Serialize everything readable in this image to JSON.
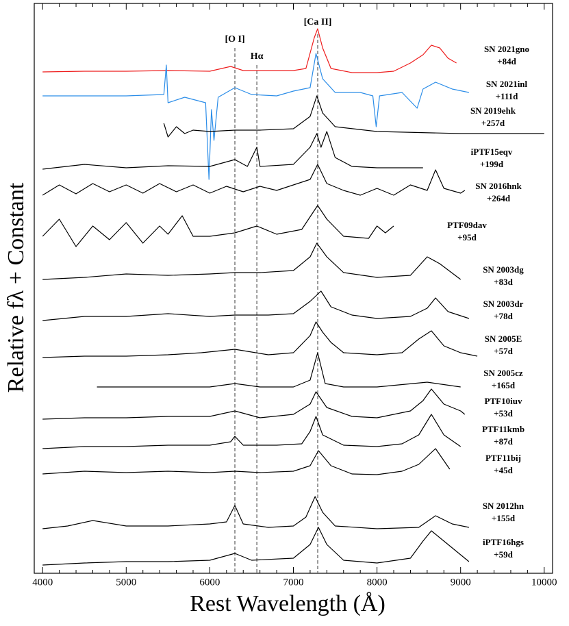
{
  "chart_data": {
    "type": "line",
    "xlabel": "Rest Wavelength (Å)",
    "ylabel": "Relative fλ + Constant",
    "xlim": [
      3900,
      10100
    ],
    "ylim": [
      0,
      83.2
    ],
    "xticks": [
      4000,
      5000,
      6000,
      7000,
      8000,
      9000,
      10000
    ],
    "lines": [
      {
        "label": "[O I]",
        "x": 6300
      },
      {
        "label": "Hα",
        "x": 6563
      },
      {
        "label": "[Ca II]",
        "x": 7291
      }
    ],
    "series": [
      {
        "name": "SN 2021gno",
        "phase": "+84d",
        "color": "#ee1c1c",
        "x": [
          4000,
          4500,
          5000,
          5500,
          6000,
          6250,
          6400,
          6700,
          7000,
          7150,
          7250,
          7290,
          7350,
          7450,
          7700,
          8000,
          8200,
          8400,
          8550,
          8650,
          8750,
          8850,
          8950
        ],
        "values": [
          73.2,
          73.3,
          73.3,
          73.4,
          73.3,
          74.0,
          73.4,
          73.4,
          73.4,
          73.7,
          78.2,
          79.5,
          76.7,
          73.7,
          73.1,
          73.1,
          73.3,
          74.5,
          75.7,
          77.1,
          76.7,
          75.2,
          74.5
        ]
      },
      {
        "name": "SN 2021inl",
        "phase": "+111d",
        "color": "#2b8de8",
        "x": [
          4000,
          4500,
          5000,
          5450,
          5480,
          5500,
          5700,
          5950,
          5990,
          6020,
          6050,
          6100,
          6300,
          6500,
          6800,
          7000,
          7200,
          7270,
          7350,
          7500,
          7800,
          7950,
          7990,
          8030,
          8300,
          8480,
          8550,
          8700,
          8900,
          9100
        ],
        "values": [
          69.7,
          69.7,
          69.7,
          69.9,
          74.2,
          68.7,
          69.5,
          68.7,
          57.5,
          67.7,
          63.2,
          69.5,
          70.9,
          69.9,
          69.7,
          70.4,
          70.9,
          75.9,
          72.2,
          70.2,
          70.2,
          69.7,
          65.2,
          69.7,
          70.2,
          67.9,
          70.7,
          71.7,
          70.7,
          70.2
        ]
      },
      {
        "name": "SN 2019ehk",
        "phase": "+257d",
        "color": "#000000",
        "x": [
          5450,
          5500,
          5600,
          5700,
          5800,
          6000,
          6300,
          6600,
          7000,
          7200,
          7280,
          7350,
          7500,
          8000,
          9000,
          10000
        ],
        "values": [
          65.7,
          63.7,
          65.2,
          64.2,
          64.7,
          64.5,
          64.7,
          64.7,
          64.9,
          66.7,
          69.7,
          67.2,
          65.2,
          64.5,
          64.2,
          64.2
        ]
      },
      {
        "name": "iPTF15eqv",
        "phase": "+199d",
        "color": "#000000",
        "x": [
          4000,
          4500,
          5000,
          5500,
          6000,
          6300,
          6450,
          6563,
          6600,
          7000,
          7200,
          7280,
          7330,
          7400,
          7500,
          7700,
          8000,
          8550
        ],
        "values": [
          59.0,
          59.7,
          59.2,
          59.5,
          59.4,
          60.4,
          59.4,
          62.2,
          59.4,
          59.7,
          62.2,
          64.2,
          62.2,
          64.5,
          60.7,
          59.4,
          59.2,
          59.2
        ]
      },
      {
        "name": "SN 2016hnk",
        "phase": "+264d",
        "color": "#000000",
        "x": [
          4000,
          4200,
          4400,
          4600,
          4800,
          5000,
          5200,
          5400,
          5600,
          5800,
          6000,
          6200,
          6400,
          6600,
          6800,
          7000,
          7200,
          7290,
          7400,
          7600,
          7800,
          8000,
          8200,
          8400,
          8600,
          8700,
          8800,
          9000,
          9050
        ],
        "values": [
          55.2,
          56.7,
          55.4,
          56.9,
          55.7,
          56.7,
          55.5,
          56.9,
          55.7,
          56.7,
          55.5,
          56.5,
          55.7,
          56.5,
          55.9,
          56.7,
          57.5,
          59.7,
          56.9,
          55.9,
          55.2,
          56.2,
          55.2,
          56.7,
          55.9,
          58.9,
          56.2,
          55.5,
          55.9
        ]
      },
      {
        "name": "PTF09dav",
        "phase": "+95d",
        "color": "#000000",
        "x": [
          4000,
          4200,
          4400,
          4600,
          4800,
          5000,
          5200,
          5400,
          5500,
          5670,
          5800,
          6000,
          6300,
          6563,
          6800,
          7100,
          7290,
          7400,
          7600,
          7900,
          8000,
          8100,
          8200
        ],
        "values": [
          49.2,
          51.7,
          47.7,
          50.7,
          48.7,
          51.2,
          48.2,
          50.7,
          49.5,
          52.2,
          49.2,
          49.2,
          49.7,
          50.7,
          49.5,
          50.2,
          53.7,
          51.7,
          49.2,
          48.9,
          50.7,
          49.7,
          50.7
        ]
      },
      {
        "name": "SN 2003dg",
        "phase": "+83d",
        "color": "#000000",
        "x": [
          4000,
          4500,
          5000,
          5500,
          6000,
          6300,
          6600,
          7000,
          7200,
          7280,
          7400,
          7600,
          8000,
          8400,
          8600,
          8750,
          9000
        ],
        "values": [
          42.9,
          43.2,
          43.7,
          43.5,
          43.7,
          43.9,
          43.9,
          44.2,
          46.2,
          48.2,
          46.2,
          43.9,
          43.2,
          43.5,
          46.2,
          45.2,
          42.9
        ]
      },
      {
        "name": "SN 2003dr",
        "phase": "+78d",
        "color": "#000000",
        "x": [
          4000,
          4500,
          5000,
          5500,
          6000,
          6300,
          6700,
          7000,
          7200,
          7330,
          7450,
          7700,
          8000,
          8400,
          8600,
          8700,
          8850,
          9100
        ],
        "values": [
          36.9,
          37.5,
          37.5,
          37.9,
          37.5,
          37.7,
          37.7,
          37.9,
          39.7,
          41.2,
          38.9,
          37.7,
          37.2,
          37.5,
          38.7,
          40.2,
          38.2,
          37.2
        ]
      },
      {
        "name": "SN 2005E",
        "phase": "+57d",
        "color": "#000000",
        "x": [
          4000,
          4500,
          5000,
          5500,
          5900,
          6300,
          6700,
          7000,
          7200,
          7270,
          7350,
          7450,
          7600,
          8000,
          8300,
          8500,
          8650,
          8800,
          9000,
          9200
        ],
        "values": [
          31.5,
          31.7,
          31.7,
          31.9,
          32.2,
          32.7,
          31.9,
          32.2,
          34.7,
          36.7,
          35.2,
          33.7,
          32.2,
          31.9,
          32.2,
          34.2,
          35.4,
          33.2,
          32.2,
          31.7
        ]
      },
      {
        "name": "SN 2005cz",
        "phase": "+165d",
        "color": "#000000",
        "x": [
          4650,
          5000,
          5500,
          6000,
          6300,
          6600,
          7000,
          7200,
          7290,
          7380,
          7600,
          8000,
          8600,
          9000
        ],
        "values": [
          27.2,
          27.2,
          27.2,
          27.2,
          27.7,
          27.2,
          27.2,
          28.2,
          32.2,
          27.7,
          27.2,
          27.2,
          27.9,
          27.2
        ]
      },
      {
        "name": "PTF10iuv",
        "phase": "+53d",
        "color": "#000000",
        "x": [
          4000,
          4500,
          5000,
          5500,
          6000,
          6300,
          6600,
          7000,
          7200,
          7270,
          7400,
          7700,
          8000,
          8400,
          8550,
          8650,
          8800,
          9000,
          9050
        ],
        "values": [
          22.5,
          22.7,
          22.7,
          22.9,
          22.9,
          23.7,
          22.7,
          23.2,
          24.7,
          26.5,
          24.2,
          22.9,
          22.7,
          23.7,
          25.2,
          26.9,
          24.7,
          23.7,
          23.2
        ]
      },
      {
        "name": "PTF11kmb",
        "phase": "+87d",
        "color": "#000000",
        "x": [
          4000,
          4500,
          5000,
          5500,
          6000,
          6250,
          6300,
          6400,
          6800,
          7100,
          7200,
          7270,
          7350,
          7600,
          8000,
          8300,
          8500,
          8650,
          8800,
          9000
        ],
        "values": [
          18.2,
          18.5,
          18.5,
          18.7,
          18.7,
          19.2,
          20.0,
          18.7,
          18.7,
          18.9,
          20.7,
          22.9,
          20.2,
          18.7,
          18.5,
          18.9,
          20.2,
          23.2,
          20.2,
          18.5
        ]
      },
      {
        "name": "PTF11bij",
        "phase": "+45d",
        "color": "#000000",
        "x": [
          4000,
          4500,
          5000,
          5500,
          6000,
          6300,
          6600,
          7000,
          7200,
          7300,
          7450,
          7700,
          8000,
          8300,
          8500,
          8700,
          8870
        ],
        "values": [
          14.5,
          14.9,
          14.7,
          14.9,
          14.7,
          14.9,
          14.7,
          14.9,
          15.7,
          17.9,
          15.7,
          14.5,
          14.4,
          14.9,
          15.9,
          18.2,
          15.2
        ]
      },
      {
        "name": "SN 2012hn",
        "phase": "+155d",
        "color": "#000000",
        "x": [
          4000,
          4300,
          4600,
          5000,
          5500,
          6000,
          6200,
          6300,
          6400,
          6700,
          7000,
          7150,
          7260,
          7350,
          7500,
          8000,
          8500,
          8700,
          8900,
          9100
        ],
        "values": [
          6.5,
          6.9,
          7.7,
          6.9,
          6.9,
          7.2,
          7.5,
          9.9,
          7.2,
          6.7,
          6.9,
          8.2,
          11.2,
          8.9,
          6.9,
          6.5,
          6.7,
          8.4,
          7.2,
          6.7
        ]
      },
      {
        "name": "iPTF16hgs",
        "phase": "+59d",
        "color": "#000000",
        "x": [
          4000,
          4500,
          5000,
          5500,
          6000,
          6300,
          6500,
          7000,
          7200,
          7300,
          7400,
          7600,
          8000,
          8400,
          8550,
          8650,
          8800,
          9000,
          9100
        ],
        "values": [
          1.2,
          1.5,
          1.7,
          1.7,
          1.9,
          2.9,
          1.9,
          2.2,
          4.2,
          6.7,
          4.2,
          1.9,
          1.5,
          2.2,
          4.7,
          6.2,
          4.7,
          2.7,
          1.7
        ]
      }
    ]
  }
}
